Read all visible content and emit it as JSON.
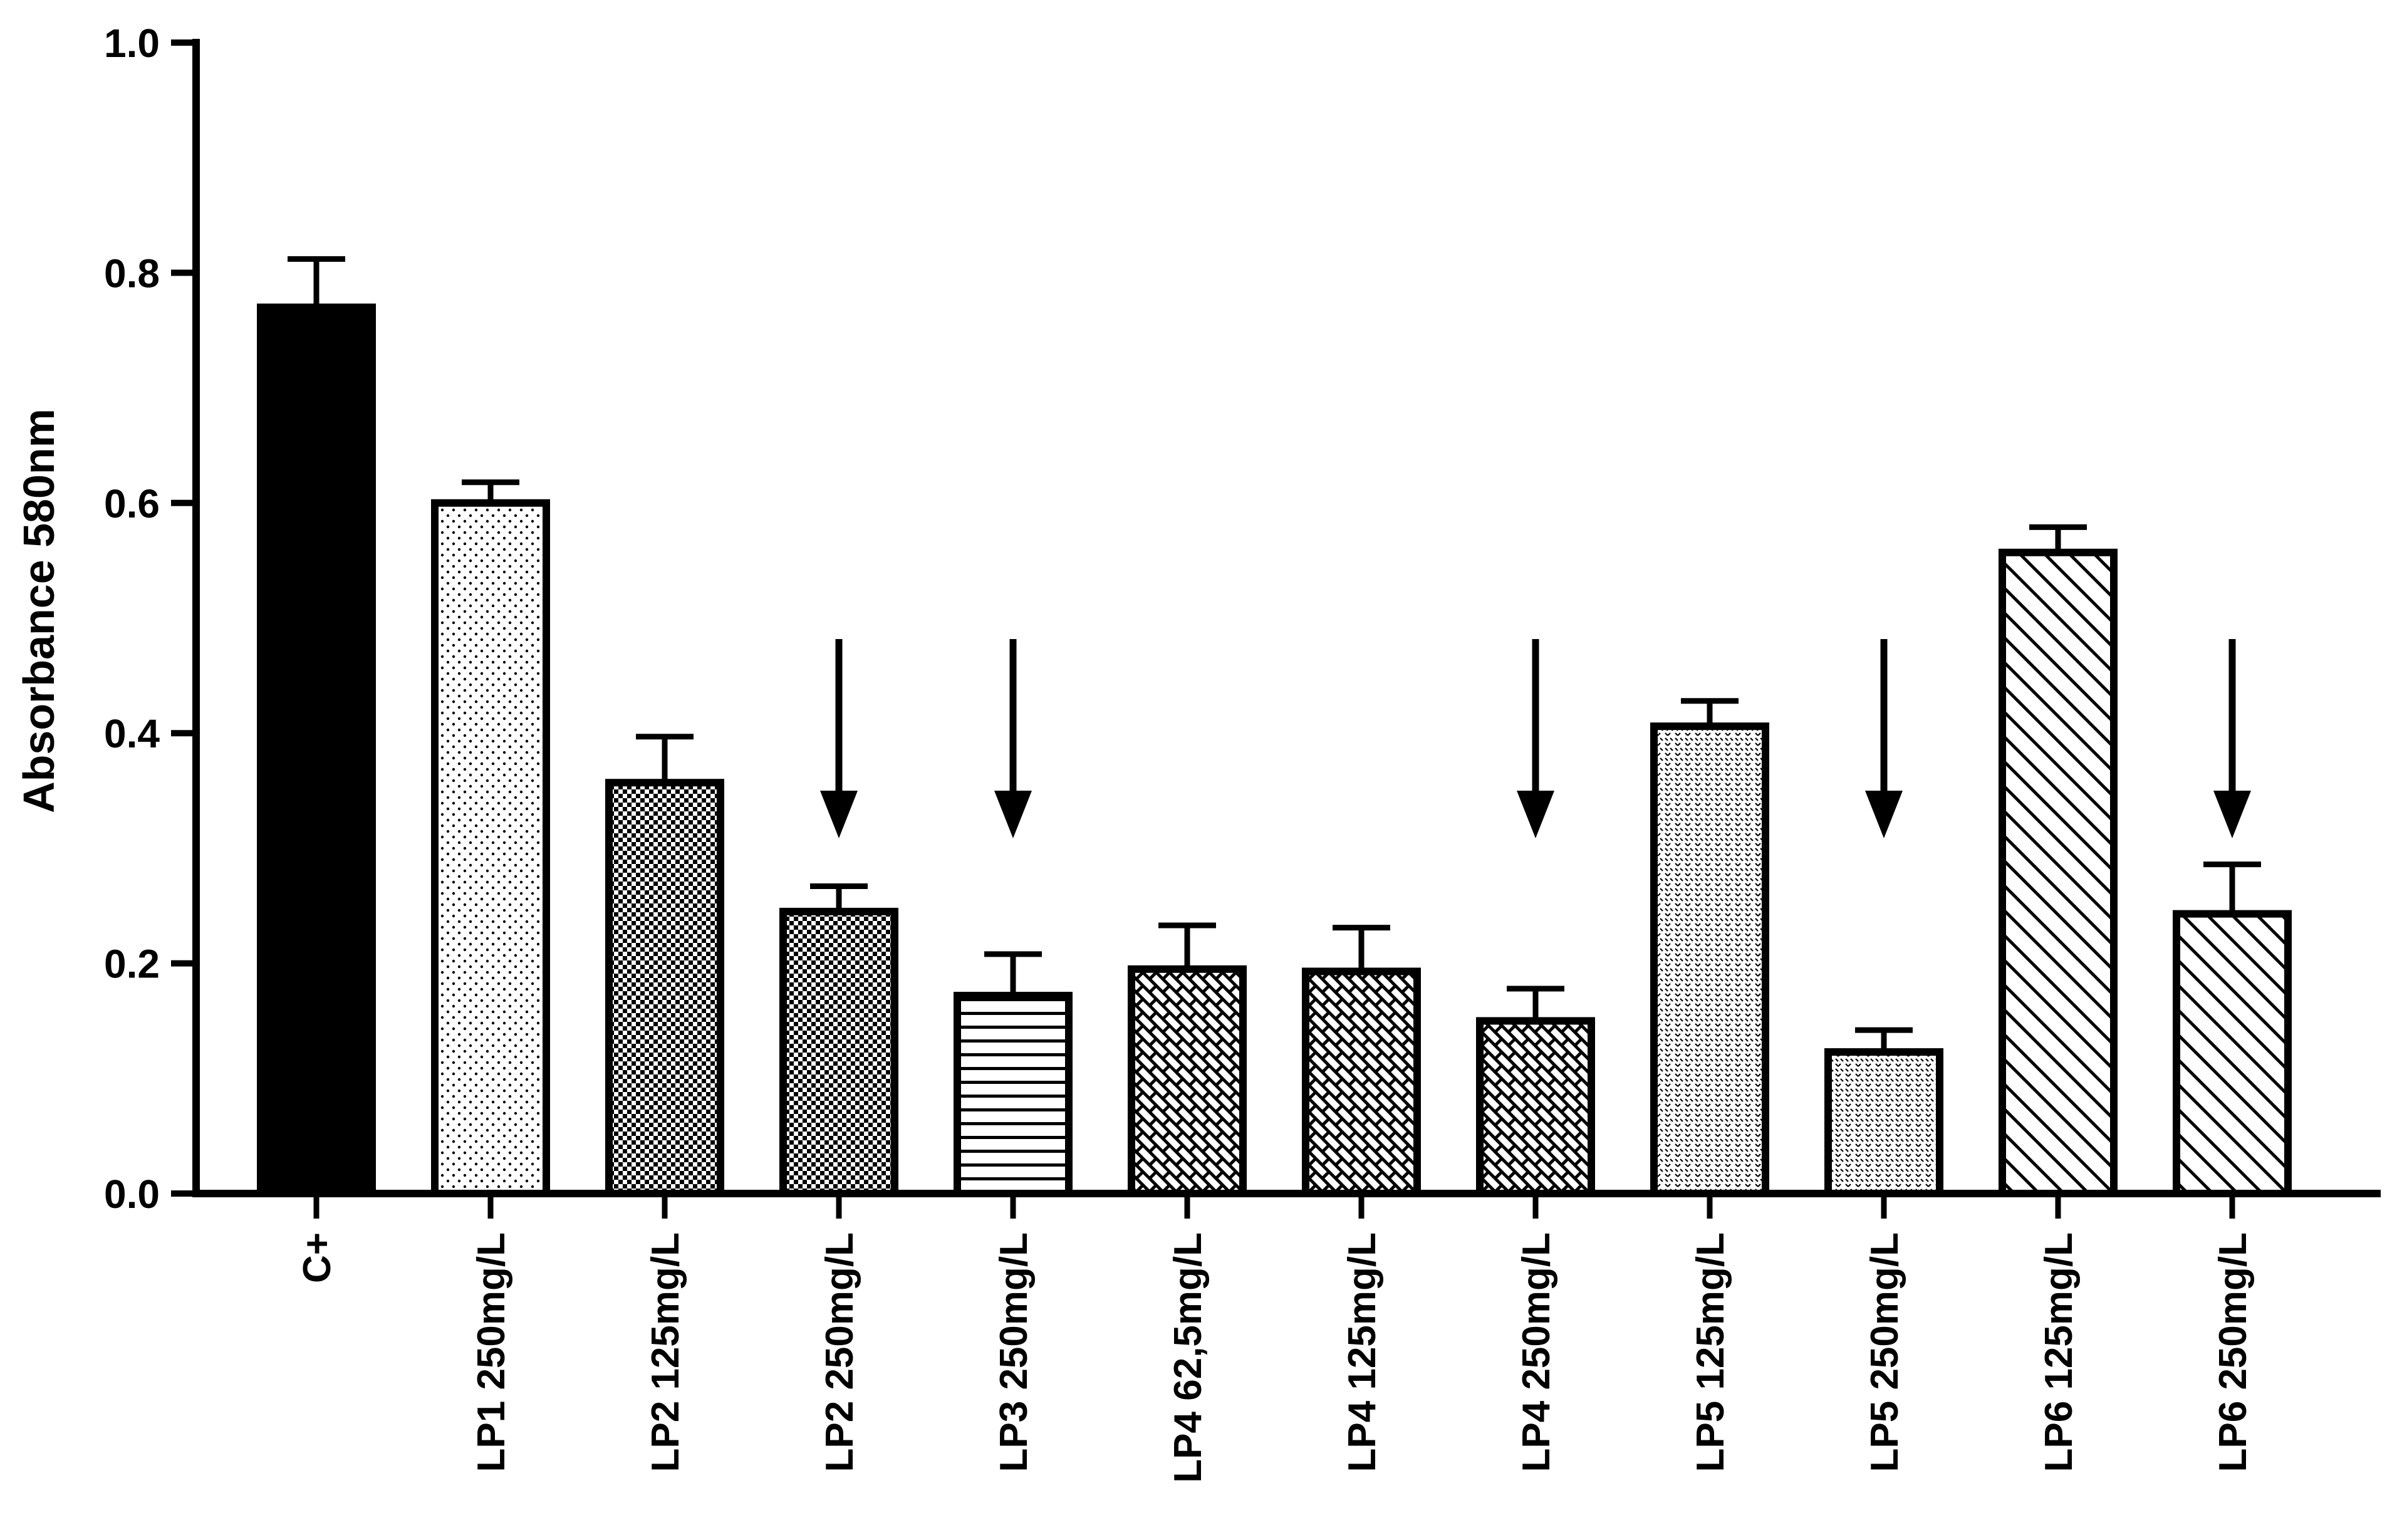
{
  "chart_data": {
    "type": "bar",
    "title": "",
    "xlabel": "",
    "ylabel": "Absorbance 580nm",
    "ylim": [
      0,
      1.0
    ],
    "yticks": [
      0.0,
      0.2,
      0.4,
      0.6,
      0.8,
      1.0
    ],
    "ytick_labels": [
      "0.0",
      "0.2",
      "0.4",
      "0.6",
      "0.8",
      "1.0"
    ],
    "grid": false,
    "legend": "none",
    "categories": [
      "C+",
      "LP1 250mg/L",
      "LP2 125mg/L",
      "LP2 250mg/L",
      "LP3 250mg/L",
      "LP4 62,5mg/L",
      "LP4 125mg/L",
      "LP4 250mg/L",
      "LP5 125mg/L",
      "LP5 250mg/L",
      "LP6 125mg/L",
      "LP6 250mg/L"
    ],
    "values": [
      0.77,
      0.6,
      0.357,
      0.245,
      0.172,
      0.195,
      0.193,
      0.15,
      0.406,
      0.123,
      0.557,
      0.243
    ],
    "error_upper": [
      0.042,
      0.018,
      0.04,
      0.022,
      0.036,
      0.038,
      0.038,
      0.028,
      0.022,
      0.019,
      0.022,
      0.043
    ],
    "arrows": [
      "LP2 250mg/L",
      "LP3 250mg/L",
      "LP4 250mg/L",
      "LP5 250mg/L",
      "LP6 250mg/L"
    ],
    "patterns": [
      "solid",
      "dots",
      "checker",
      "checker",
      "horizontal-lines",
      "brick",
      "brick",
      "brick",
      "dense-dots",
      "dense-dots",
      "diagonal-lines",
      "diagonal-lines"
    ],
    "colors": {
      "bar_stroke": "#000000",
      "solid_fill": "#000000",
      "background": "#ffffff"
    }
  }
}
